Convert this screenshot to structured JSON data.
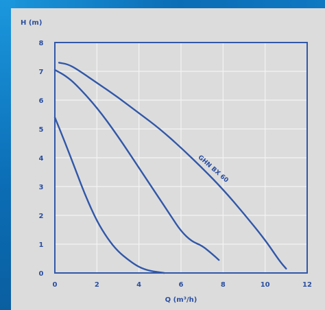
{
  "chart_data": {
    "type": "line",
    "ylabel": "H (m)",
    "xlabel": "Q (m³/h)",
    "xlim": [
      0,
      12
    ],
    "ylim": [
      0,
      8
    ],
    "x_ticks": [
      "0",
      "2",
      "4",
      "6",
      "8",
      "10",
      "12"
    ],
    "y_ticks": [
      "0",
      "1",
      "2",
      "3",
      "4",
      "5",
      "6",
      "7",
      "8"
    ],
    "grid": true,
    "colors": {
      "curve": "#3057a8",
      "frame": "#3057a8",
      "grid": "#f4f4f4",
      "plot_bg": "#dcdcdc"
    },
    "series": [
      {
        "name": "GHN BX 60",
        "label_at": [
          6.8,
          4.0
        ],
        "points": [
          [
            0.2,
            7.3
          ],
          [
            0.6,
            7.25
          ],
          [
            1.0,
            7.1
          ],
          [
            2.0,
            6.6
          ],
          [
            3.0,
            6.1
          ],
          [
            4.0,
            5.55
          ],
          [
            5.0,
            5.0
          ],
          [
            6.0,
            4.35
          ],
          [
            7.0,
            3.65
          ],
          [
            8.0,
            2.9
          ],
          [
            9.0,
            2.05
          ],
          [
            10.0,
            1.15
          ],
          [
            10.7,
            0.4
          ],
          [
            11.0,
            0.15
          ]
        ]
      },
      {
        "name": "",
        "points": [
          [
            0.0,
            7.05
          ],
          [
            0.5,
            6.85
          ],
          [
            1.0,
            6.55
          ],
          [
            2.0,
            5.75
          ],
          [
            3.0,
            4.75
          ],
          [
            4.0,
            3.65
          ],
          [
            5.0,
            2.55
          ],
          [
            5.5,
            2.0
          ],
          [
            6.0,
            1.45
          ],
          [
            6.5,
            1.1
          ],
          [
            7.0,
            0.95
          ],
          [
            7.5,
            0.65
          ],
          [
            7.8,
            0.45
          ]
        ]
      },
      {
        "name": "",
        "points": [
          [
            0.0,
            5.4
          ],
          [
            0.5,
            4.5
          ],
          [
            1.0,
            3.55
          ],
          [
            1.5,
            2.6
          ],
          [
            2.0,
            1.8
          ],
          [
            2.5,
            1.2
          ],
          [
            3.0,
            0.75
          ],
          [
            3.5,
            0.45
          ],
          [
            4.0,
            0.2
          ],
          [
            4.5,
            0.07
          ],
          [
            5.2,
            0.0
          ]
        ]
      }
    ]
  }
}
